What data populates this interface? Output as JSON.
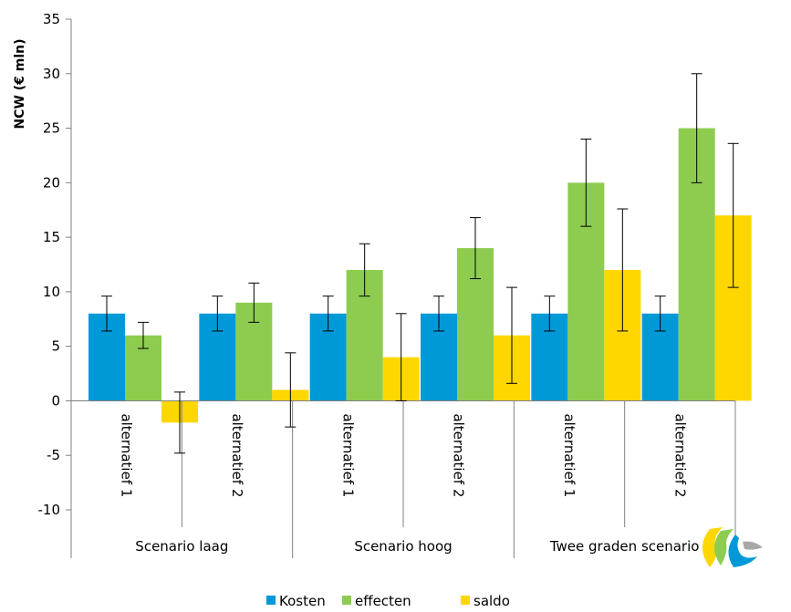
{
  "chart_data": {
    "type": "bar",
    "title": "",
    "ylabel": "NCW (€ mln)",
    "ylim": [
      -10,
      35
    ],
    "yticks": [
      -10,
      -5,
      0,
      5,
      10,
      15,
      20,
      25,
      30,
      35
    ],
    "grid": false,
    "legend_position": "bottom",
    "groups": [
      {
        "label": "Scenario laag",
        "categories": [
          "alternatief 1",
          "alternatief 2"
        ]
      },
      {
        "label": "Scenario hoog",
        "categories": [
          "alternatief 1",
          "alternatief 2"
        ]
      },
      {
        "label": "Twee graden scenario",
        "categories": [
          "alternatief 1",
          "alternatief 2"
        ]
      }
    ],
    "categories": [
      "alternatief 1",
      "alternatief 2",
      "alternatief 1",
      "alternatief 2",
      "alternatief 1",
      "alternatief 2"
    ],
    "series": [
      {
        "name": "Kosten",
        "color": "#0099d8",
        "values": [
          8,
          8,
          8,
          8,
          8,
          8
        ],
        "error_low": [
          6.4,
          6.4,
          6.4,
          6.4,
          6.4,
          6.4
        ],
        "error_high": [
          9.6,
          9.6,
          9.6,
          9.6,
          9.6,
          9.6
        ]
      },
      {
        "name": "effecten",
        "color": "#8dcc4f",
        "values": [
          6,
          9,
          12,
          14,
          20,
          25
        ],
        "error_low": [
          4.8,
          7.2,
          9.6,
          11.2,
          16,
          20
        ],
        "error_high": [
          7.2,
          10.8,
          14.4,
          16.8,
          24,
          30
        ]
      },
      {
        "name": "saldo",
        "color": "#ffd700",
        "values": [
          -2,
          1,
          4,
          6,
          12,
          17
        ],
        "error_low": [
          -4.8,
          -2.4,
          0,
          1.6,
          6.4,
          10.4
        ],
        "error_high": [
          0.8,
          4.4,
          8,
          10.4,
          17.6,
          23.6
        ]
      }
    ]
  }
}
